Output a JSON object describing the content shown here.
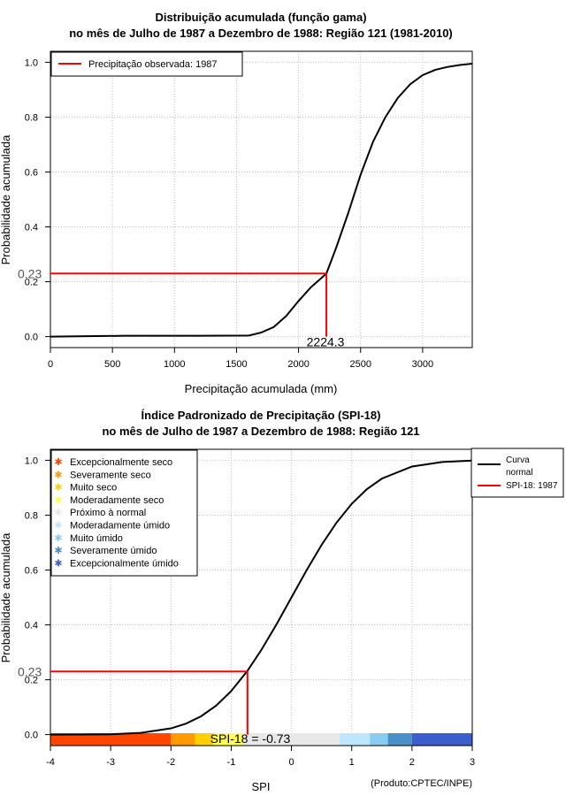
{
  "colors": {
    "observed": "#ff0000",
    "curve": "#000000",
    "categories": [
      "#ff4500",
      "#ff9a00",
      "#ffd000",
      "#ffff55",
      "#e8e8e8",
      "#bfe6ff",
      "#87cdf2",
      "#4a90c8",
      "#3a5fcd"
    ]
  },
  "chart_data": [
    {
      "type": "line",
      "title": "Distribuição acumulada (função gama)",
      "subtitle": "no mês de Julho de 1987 a Dezembro de 1988: Região 121 (1981-2010)",
      "xlabel": "Precipitação acumulada (mm)",
      "ylabel": "Probabilidade acumulada",
      "xlim": [
        0,
        3400
      ],
      "ylim": [
        -0.04,
        1.04
      ],
      "xticks": [
        0,
        500,
        1000,
        1500,
        2000,
        2500,
        3000
      ],
      "yticks": [
        "0.0",
        "0.2",
        "0.4",
        "0.6",
        "0.8",
        "1.0"
      ],
      "grid": true,
      "legend": {
        "position": "top-left",
        "entries": [
          "Precipitação observada: 1987"
        ]
      },
      "series": [
        {
          "name": "Distribuição gama acumulada",
          "x": [
            0,
            600,
            1200,
            1600,
            1700,
            1800,
            1900,
            2000,
            2100,
            2200,
            2224.3,
            2300,
            2400,
            2500,
            2600,
            2700,
            2800,
            2900,
            3000,
            3100,
            3200,
            3300,
            3400
          ],
          "y": [
            0.0,
            0.003,
            0.003,
            0.004,
            0.015,
            0.035,
            0.075,
            0.13,
            0.18,
            0.22,
            0.23,
            0.32,
            0.45,
            0.59,
            0.71,
            0.8,
            0.87,
            0.92,
            0.953,
            0.972,
            0.983,
            0.99,
            0.995
          ]
        }
      ],
      "observed": {
        "x": 2224.3,
        "y": 0.23,
        "x_label": "2224.3",
        "y_label": "0.23"
      }
    },
    {
      "type": "line",
      "title": "Índice Padronizado de Precipitação (SPI-18)",
      "subtitle": "no mês de Julho de 1987 a Dezembro de 1988: Região 121",
      "xlabel": "SPI",
      "ylabel": "Probabilidade acumulada",
      "xlim": [
        -4,
        3
      ],
      "ylim": [
        -0.04,
        1.04
      ],
      "xticks": [
        -4,
        -3,
        -2,
        -1,
        0,
        1,
        2,
        3
      ],
      "yticks": [
        "0.0",
        "0.2",
        "0.4",
        "0.6",
        "0.8",
        "1.0"
      ],
      "grid": true,
      "legend_categories": {
        "position": "top-left",
        "entries": [
          "Excepcionalmente seco",
          "Severamente seco",
          "Muito seco",
          "Moderadamente seco",
          "Próximo à normal",
          "Moderadamente úmido",
          "Muito úmido",
          "Severamente úmido",
          "Excepcionalmente úmido"
        ]
      },
      "legend_lines": {
        "position": "top-right",
        "entries": [
          {
            "lines": [
              "Curva",
              "normal"
            ]
          },
          {
            "lines": [
              "SPI-18: 1987"
            ]
          }
        ]
      },
      "series": [
        {
          "name": "Curva normal",
          "x": [
            -4,
            -3.5,
            -3,
            -2.5,
            -2,
            -1.75,
            -1.5,
            -1.25,
            -1,
            -0.73,
            -0.5,
            -0.25,
            0,
            0.25,
            0.5,
            0.75,
            1,
            1.25,
            1.5,
            2,
            2.5,
            3
          ],
          "y": [
            3e-05,
            0.0002,
            0.0013,
            0.0062,
            0.0228,
            0.0401,
            0.0668,
            0.1056,
            0.1587,
            0.2327,
            0.3085,
            0.4013,
            0.5,
            0.5987,
            0.6915,
            0.7734,
            0.8413,
            0.8944,
            0.9332,
            0.9772,
            0.9938,
            0.9987
          ]
        }
      ],
      "observed": {
        "x": -0.73,
        "y": 0.23,
        "y_label": "0.23"
      },
      "spi_label": "SPI-18 = -0.73",
      "category_bar": {
        "bounds": [
          -4,
          -2,
          -1.6,
          -1.3,
          -0.8,
          0.8,
          1.3,
          1.6,
          2,
          3
        ]
      },
      "footnote": "(Produto:CPTEC/INPE)"
    }
  ]
}
